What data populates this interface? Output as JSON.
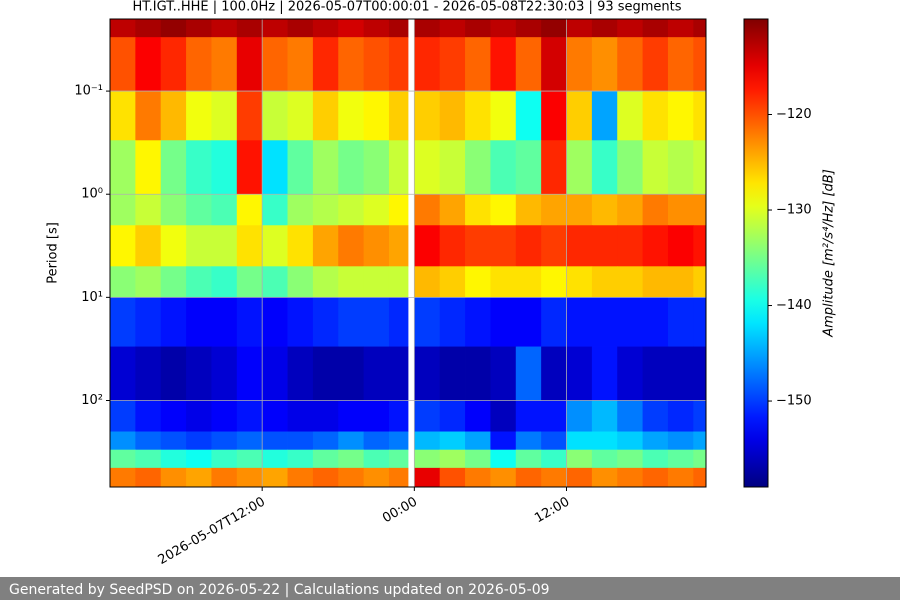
{
  "chart_data": {
    "type": "heatmap",
    "title": "HT.IGT..HHE | 100.0Hz | 2026-05-07T00:00:01 - 2026-05-08T22:30:03 | 93 segments",
    "y_label": "Period [s]",
    "colorbar_label": "Amplitude [m²/s⁴/Hz] [dB]",
    "footer": "Generated by SeedPSD on 2026-05-22 | Calculations updated on 2026-05-09",
    "colormap": "jet",
    "grid": true,
    "y_log": true,
    "y_inverted": true,
    "x": [
      "2026-05-07T00:00",
      "2026-05-07T02:00",
      "2026-05-07T04:00",
      "2026-05-07T06:00",
      "2026-05-07T08:00",
      "2026-05-07T10:00",
      "2026-05-07T12:00",
      "2026-05-07T14:00",
      "2026-05-07T16:00",
      "2026-05-07T18:00",
      "2026-05-07T20:00",
      "2026-05-07T22:00",
      "2026-05-07T23:30",
      "2026-05-08T00:00",
      "2026-05-08T02:00",
      "2026-05-08T04:00",
      "2026-05-08T06:00",
      "2026-05-08T08:00",
      "2026-05-08T10:00",
      "2026-05-08T12:00",
      "2026-05-08T14:00",
      "2026-05-08T16:00",
      "2026-05-08T18:00",
      "2026-05-08T20:00",
      "2026-05-08T22:00",
      "2026-05-08T23:00"
    ],
    "y": [
      0.02,
      0.03,
      0.1,
      0.3,
      1,
      2,
      5,
      10,
      30,
      100,
      200,
      300,
      450,
      690
    ],
    "xlim": [
      "2026-05-07T00:00",
      "2026-05-08T23:00"
    ],
    "xticks": [
      "2026-05-07T12:00",
      {
        "value": "2026-05-08T00:00",
        "label": "00:00"
      },
      {
        "value": "2026-05-08T12:00",
        "label": "12:00"
      }
    ],
    "ylim": [
      0.02,
      690
    ],
    "yticks": [
      {
        "value": 0.1,
        "label": "10⁻¹"
      },
      {
        "value": 1,
        "label": "10⁰"
      },
      {
        "value": 10,
        "label": "10¹"
      },
      {
        "value": 100,
        "label": "10²"
      }
    ],
    "clim": [
      -159,
      -110
    ],
    "cticks": [
      {
        "value": -120,
        "label": "−120"
      },
      {
        "value": -130,
        "label": "−130"
      },
      {
        "value": -140,
        "label": "−140"
      },
      {
        "value": -150,
        "label": "−150"
      }
    ],
    "values": [
      [
        -113,
        -112,
        -111,
        -112,
        -113,
        -112,
        -113,
        -112,
        -113,
        -114,
        -113,
        -112,
        null,
        -112,
        -113,
        -112,
        -113,
        -112,
        -111,
        -113,
        -112,
        -113,
        -112,
        -113,
        -112
      ],
      [
        -120,
        -116,
        -118,
        -121,
        -122,
        -115,
        -121,
        -122,
        -118,
        -121,
        -120,
        -119,
        null,
        -118,
        -119,
        -121,
        -117,
        -121,
        -114,
        -122,
        -123,
        -121,
        -119,
        -121,
        -120
      ],
      [
        -127,
        -122,
        -125,
        -129,
        -130,
        -119,
        -131,
        -130,
        -126,
        -129,
        -128,
        -126,
        null,
        -126,
        -125,
        -127,
        -129,
        -140,
        -116,
        -126,
        -145,
        -130,
        -127,
        -128,
        -127
      ],
      [
        -133,
        -128,
        -135,
        -138,
        -139,
        -117,
        -142,
        -136,
        -133,
        -135,
        -134,
        -131,
        null,
        -130,
        -131,
        -134,
        -137,
        -136,
        -118,
        -133,
        -138,
        -134,
        -131,
        -132,
        -131
      ],
      [
        -133,
        -131,
        -134,
        -136,
        -137,
        -128,
        -138,
        -133,
        -132,
        -131,
        -130,
        -128,
        null,
        -122,
        -124,
        -127,
        -128,
        -125,
        -124,
        -124,
        -125,
        -124,
        -122,
        -123,
        -123
      ],
      [
        -128,
        -126,
        -129,
        -131,
        -131,
        -127,
        -130,
        -127,
        -124,
        -122,
        -123,
        -124,
        null,
        -116,
        -118,
        -119,
        -119,
        -118,
        -119,
        -118,
        -118,
        -118,
        -117,
        -116,
        -117
      ],
      [
        -134,
        -133,
        -135,
        -137,
        -138,
        -135,
        -137,
        -134,
        -132,
        -131,
        -131,
        -131,
        null,
        -125,
        -126,
        -128,
        -127,
        -127,
        -128,
        -127,
        -126,
        -126,
        -125,
        -125,
        -126
      ],
      [
        -150,
        -151,
        -152,
        -153,
        -153,
        -152,
        -153,
        -152,
        -151,
        -150,
        -150,
        -151,
        null,
        -150,
        -151,
        -152,
        -153,
        -153,
        -151,
        -152,
        -152,
        -152,
        -152,
        -151,
        -151
      ],
      [
        -155,
        -156,
        -157,
        -156,
        -155,
        -153,
        -154,
        -156,
        -157,
        -157,
        -156,
        -156,
        null,
        -156,
        -157,
        -157,
        -156,
        -148,
        -156,
        -155,
        -152,
        -155,
        -156,
        -156,
        -156
      ],
      [
        -150,
        -152,
        -153,
        -154,
        -153,
        -152,
        -153,
        -154,
        -154,
        -153,
        -153,
        -152,
        null,
        -150,
        -151,
        -153,
        -156,
        -152,
        -152,
        -146,
        -144,
        -147,
        -150,
        -151,
        -150
      ],
      [
        -146,
        -148,
        -149,
        -150,
        -149,
        -148,
        -149,
        -149,
        -148,
        -146,
        -148,
        -147,
        null,
        -144,
        -143,
        -145,
        -152,
        -147,
        -149,
        -142,
        -142,
        -143,
        -145,
        -146,
        -145
      ],
      [
        -136,
        -137,
        -139,
        -140,
        -138,
        -137,
        -139,
        -138,
        -136,
        -135,
        -137,
        -136,
        null,
        -134,
        -133,
        -135,
        -140,
        -136,
        -138,
        -134,
        -136,
        -135,
        -137,
        -136,
        -135
      ],
      [
        -122,
        -121,
        -123,
        -124,
        -122,
        -123,
        -124,
        -122,
        -121,
        -122,
        -123,
        -122,
        null,
        -115,
        -120,
        -122,
        -123,
        -121,
        -122,
        -121,
        -123,
        -122,
        -121,
        -122,
        -121
      ]
    ]
  }
}
